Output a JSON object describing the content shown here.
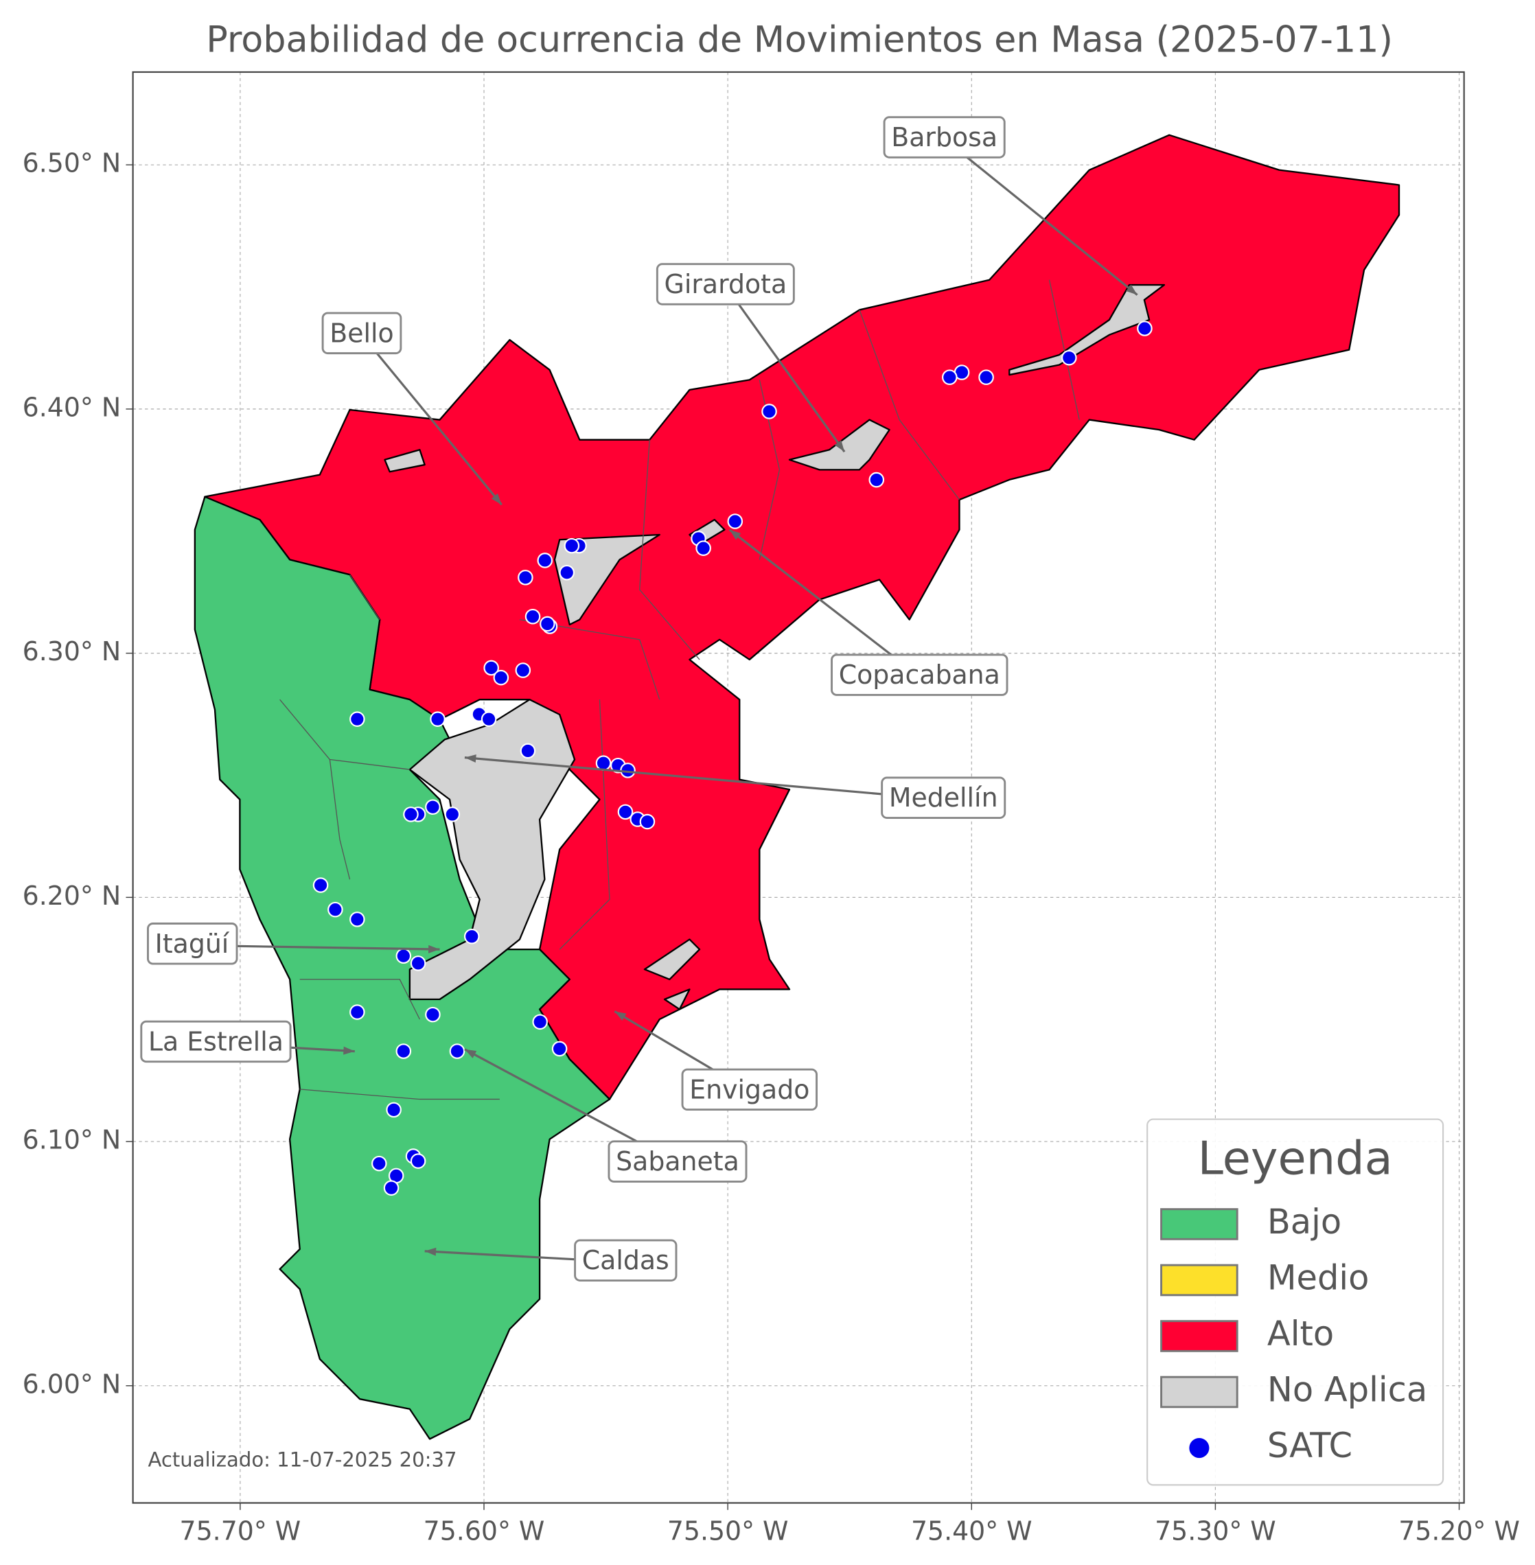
{
  "chart_data": {
    "type": "map",
    "title": "Probabilidad de ocurrencia de Movimientos en Masa (2025-07-11)",
    "footnote": "Actualizado: 11-07-2025 20:37",
    "xlim": [
      -75.744,
      -75.198
    ],
    "ylim": [
      5.952,
      6.538
    ],
    "xticks": [
      {
        "value": -75.7,
        "label": "75.70° W"
      },
      {
        "value": -75.6,
        "label": "75.60° W"
      },
      {
        "value": -75.5,
        "label": "75.50° W"
      },
      {
        "value": -75.4,
        "label": "75.40° W"
      },
      {
        "value": -75.3,
        "label": "75.30° W"
      },
      {
        "value": -75.2,
        "label": "75.20° W"
      }
    ],
    "yticks": [
      {
        "value": 6.0,
        "label": "6.00° N"
      },
      {
        "value": 6.1,
        "label": "6.10° N"
      },
      {
        "value": 6.2,
        "label": "6.20° N"
      },
      {
        "value": 6.3,
        "label": "6.30° N"
      },
      {
        "value": 6.4,
        "label": "6.40° N"
      },
      {
        "value": 6.5,
        "label": "6.50° N"
      }
    ],
    "grid": true,
    "legend_title": "Leyenda",
    "legend_position": "lower right",
    "legend_items": [
      {
        "name": "Bajo",
        "color": "#48c878"
      },
      {
        "name": "Medio",
        "color": "#fde02a"
      },
      {
        "name": "Alto",
        "color": "#ff0033"
      },
      {
        "name": "No Aplica",
        "color": "#d3d3d3"
      }
    ],
    "series": [
      {
        "name": "SATC",
        "color": "#0000ee",
        "x": [
          -75.329,
          -75.36,
          -75.394,
          -75.404,
          -75.409,
          -75.483,
          -75.439,
          -75.497,
          -75.512,
          -75.51,
          -75.561,
          -75.564,
          -75.575,
          -75.583,
          -75.566,
          -75.58,
          -75.573,
          -75.574,
          -75.597,
          -75.593,
          -75.584,
          -75.619,
          -75.602,
          -75.598,
          -75.652,
          -75.582,
          -75.551,
          -75.545,
          -75.541,
          -75.542,
          -75.537,
          -75.533,
          -75.613,
          -75.621,
          -75.627,
          -75.63,
          -75.667,
          -75.661,
          -75.652,
          -75.605,
          -75.633,
          -75.627,
          -75.652,
          -75.621,
          -75.577,
          -75.569,
          -75.633,
          -75.611,
          -75.637,
          -75.643,
          -75.629,
          -75.627,
          -75.636,
          -75.638
        ],
        "y": [
          6.433,
          6.421,
          6.413,
          6.415,
          6.413,
          6.399,
          6.371,
          6.354,
          6.347,
          6.343,
          6.344,
          6.344,
          6.338,
          6.331,
          6.333,
          6.315,
          6.311,
          6.312,
          6.294,
          6.29,
          6.293,
          6.273,
          6.275,
          6.273,
          6.273,
          6.26,
          6.255,
          6.254,
          6.252,
          6.235,
          6.232,
          6.231,
          6.234,
          6.237,
          6.234,
          6.234,
          6.205,
          6.195,
          6.191,
          6.184,
          6.176,
          6.173,
          6.153,
          6.152,
          6.149,
          6.138,
          6.137,
          6.137,
          6.113,
          6.091,
          6.094,
          6.092,
          6.086,
          6.081
        ]
      }
    ],
    "annotations": [
      "Bello",
      "Girardota",
      "Barbosa",
      "Copacabana",
      "Medellín",
      "Itagüí",
      "La Estrella",
      "Envigado",
      "Sabaneta",
      "Caldas"
    ]
  }
}
